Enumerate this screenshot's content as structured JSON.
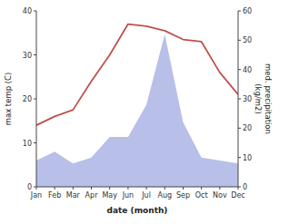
{
  "chart_data": {
    "type": "line",
    "categories": [
      "Jan",
      "Feb",
      "Mar",
      "Apr",
      "May",
      "Jun",
      "Jul",
      "Aug",
      "Sep",
      "Oct",
      "Nov",
      "Dec"
    ],
    "series": [
      {
        "type": "line",
        "color": "#c0504d",
        "axis": "y",
        "values": [
          14,
          16,
          17.5,
          24,
          30,
          37,
          36.5,
          35.5,
          33.5,
          33,
          26,
          21
        ]
      },
      {
        "type": "area",
        "color": "#b8bfe8",
        "axis": "y2",
        "values": [
          9,
          12,
          8,
          10,
          17,
          17,
          28,
          52,
          22,
          10,
          9,
          8
        ]
      }
    ],
    "x_label": "date (month)",
    "y_label": "max temp (C)",
    "y2_label": "med. precipitation\n(kg/m2)",
    "ylim": [
      0,
      40
    ],
    "yticks": [
      0,
      10,
      20,
      30,
      40
    ],
    "y2lim": [
      0,
      60
    ],
    "y2ticks": [
      0,
      10,
      20,
      30,
      40,
      50,
      60
    ],
    "grid": false
  }
}
